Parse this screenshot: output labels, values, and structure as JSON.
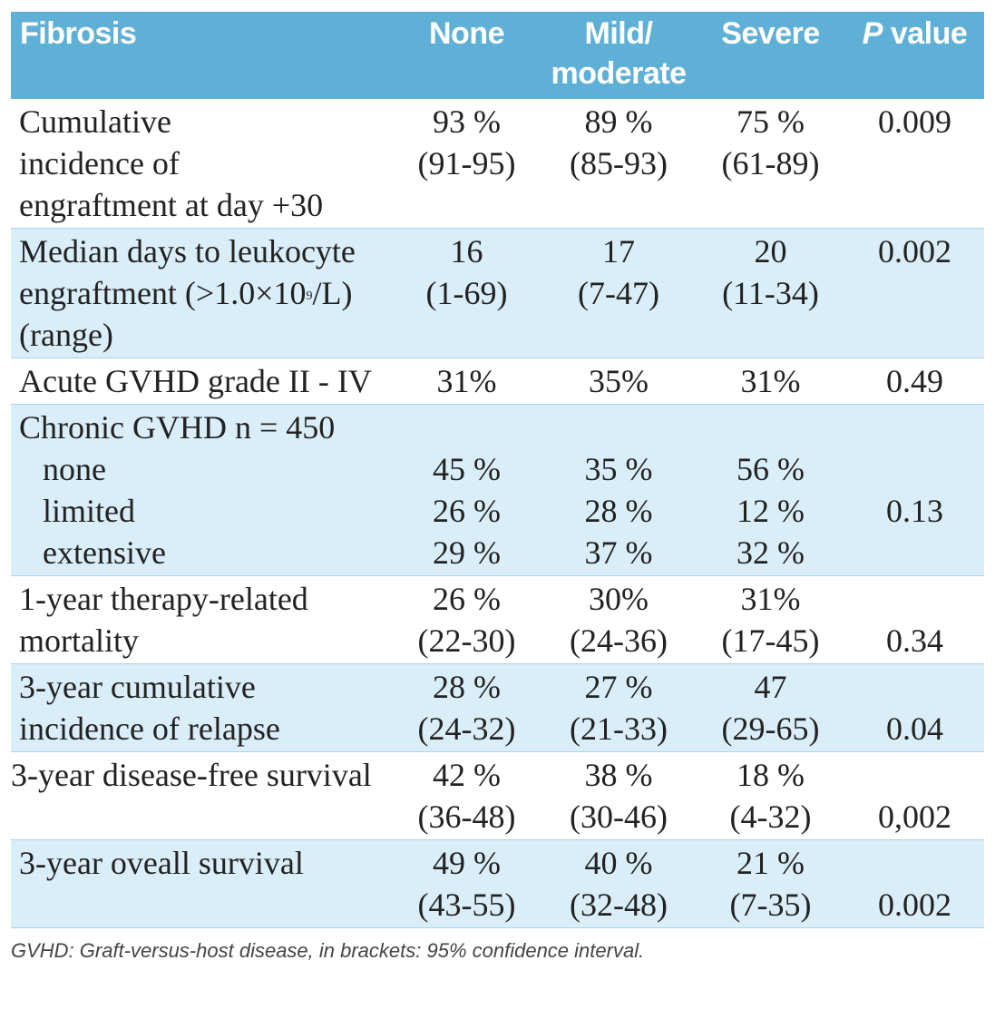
{
  "table": {
    "headers": [
      "Fibrosis",
      "None",
      "Mild/ moderate",
      "Severe",
      "P value"
    ],
    "header_p_italic": "P",
    "header_p_rest": " value",
    "rows": [
      {
        "label_lines": [
          "Cumulative",
          "incidence of",
          "engraftment at day +30"
        ],
        "none": [
          "93 %",
          "(91-95)"
        ],
        "mild": [
          "89 %",
          "(85-93)"
        ],
        "severe": [
          "75 %",
          "(61-89)"
        ],
        "p": "0.009"
      },
      {
        "label_lines": [
          "Median days to leukocyte",
          "engraftment (>1.0×10",
          "9",
          "/L)",
          "(range)"
        ],
        "none": [
          "16",
          "(1-69)"
        ],
        "mild": [
          "17",
          "(7-47)"
        ],
        "severe": [
          "20",
          "(11-34)"
        ],
        "p": "0.002"
      },
      {
        "label_lines": [
          "Acute GVHD grade II - IV"
        ],
        "none": [
          "31%"
        ],
        "mild": [
          "35%"
        ],
        "severe": [
          "31%"
        ],
        "p": "0.49"
      },
      {
        "label_lines": [
          "Chronic GVHD n = 450"
        ],
        "sub_labels": [
          "none",
          "limited",
          "extensive"
        ],
        "none": [
          "45 %",
          "26 %",
          "29 %"
        ],
        "mild": [
          "35 %",
          "28 %",
          "37 %"
        ],
        "severe": [
          "56 %",
          "12 %",
          "32 %"
        ],
        "p": "0.13"
      },
      {
        "label_lines": [
          "1-year therapy-related",
          "mortality"
        ],
        "none": [
          "26 %",
          "(22-30)"
        ],
        "mild": [
          "30%",
          "(24-36)"
        ],
        "severe": [
          "31%",
          "(17-45)"
        ],
        "p": "0.34"
      },
      {
        "label_lines": [
          "3-year cumulative",
          "incidence of relapse"
        ],
        "none": [
          "28 %",
          "(24-32)"
        ],
        "mild": [
          "27 %",
          "(21-33)"
        ],
        "severe": [
          "47",
          "(29-65)"
        ],
        "p": "0.04"
      },
      {
        "label_lines": [
          "3-year disease-free survival"
        ],
        "none": [
          "42 %",
          "(36-48)"
        ],
        "mild": [
          "38 %",
          "(30-46)"
        ],
        "severe": [
          "18 %",
          "(4-32)"
        ],
        "p": "0,002"
      },
      {
        "label_lines": [
          "3-year oveall survival"
        ],
        "none": [
          "49 %",
          "(43-55)"
        ],
        "mild": [
          "40 %",
          "(32-48)"
        ],
        "severe": [
          "21 %",
          "(7-35)"
        ],
        "p": "0.002"
      }
    ]
  },
  "caption": "GVHD: Graft-versus-host disease, in brackets: 95% confidence interval."
}
